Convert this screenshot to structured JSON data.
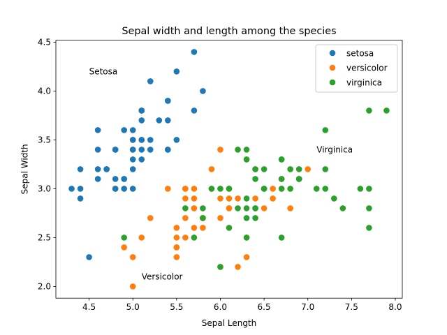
{
  "chart_data": {
    "type": "scatter",
    "title": "Sepal width and length among the species",
    "xlabel": "Sepal Length",
    "ylabel": "Sepal Width",
    "xlim": [
      4.12,
      8.08
    ],
    "ylim": [
      1.88,
      4.52
    ],
    "xticks": [
      4.5,
      5.0,
      5.5,
      6.0,
      6.5,
      7.0,
      7.5,
      8.0
    ],
    "yticks": [
      2.0,
      2.5,
      3.0,
      3.5,
      4.0,
      4.5
    ],
    "grid": false,
    "legend_position": "top-right",
    "series": [
      {
        "name": "setosa",
        "color": "#1f77b4",
        "points": [
          [
            5.1,
            3.5
          ],
          [
            4.9,
            3.0
          ],
          [
            4.7,
            3.2
          ],
          [
            4.6,
            3.1
          ],
          [
            5.0,
            3.6
          ],
          [
            5.4,
            3.9
          ],
          [
            4.6,
            3.4
          ],
          [
            5.0,
            3.4
          ],
          [
            4.4,
            2.9
          ],
          [
            4.9,
            3.1
          ],
          [
            5.4,
            3.7
          ],
          [
            4.8,
            3.4
          ],
          [
            4.8,
            3.0
          ],
          [
            4.3,
            3.0
          ],
          [
            5.8,
            4.0
          ],
          [
            5.7,
            4.4
          ],
          [
            5.4,
            3.9
          ],
          [
            5.1,
            3.5
          ],
          [
            5.7,
            3.8
          ],
          [
            5.1,
            3.8
          ],
          [
            5.4,
            3.4
          ],
          [
            5.1,
            3.7
          ],
          [
            4.6,
            3.6
          ],
          [
            5.1,
            3.3
          ],
          [
            4.8,
            3.4
          ],
          [
            5.0,
            3.0
          ],
          [
            5.0,
            3.4
          ],
          [
            5.2,
            3.5
          ],
          [
            5.2,
            3.4
          ],
          [
            4.7,
            3.2
          ],
          [
            4.8,
            3.1
          ],
          [
            5.4,
            3.4
          ],
          [
            5.2,
            4.1
          ],
          [
            5.5,
            4.2
          ],
          [
            4.9,
            3.1
          ],
          [
            5.0,
            3.2
          ],
          [
            5.5,
            3.5
          ],
          [
            4.9,
            3.6
          ],
          [
            4.4,
            3.0
          ],
          [
            5.1,
            3.4
          ],
          [
            5.0,
            3.5
          ],
          [
            4.5,
            2.3
          ],
          [
            4.4,
            3.2
          ],
          [
            5.0,
            3.5
          ],
          [
            5.1,
            3.8
          ],
          [
            4.8,
            3.0
          ],
          [
            5.1,
            3.8
          ],
          [
            4.6,
            3.2
          ],
          [
            5.3,
            3.7
          ],
          [
            5.0,
            3.3
          ]
        ]
      },
      {
        "name": "versicolor",
        "color": "#ff7f0e",
        "points": [
          [
            7.0,
            3.2
          ],
          [
            6.4,
            3.2
          ],
          [
            6.9,
            3.1
          ],
          [
            5.5,
            2.3
          ],
          [
            6.5,
            2.8
          ],
          [
            5.7,
            2.8
          ],
          [
            6.3,
            3.3
          ],
          [
            4.9,
            2.4
          ],
          [
            6.6,
            2.9
          ],
          [
            5.2,
            2.7
          ],
          [
            5.0,
            2.0
          ],
          [
            5.9,
            3.0
          ],
          [
            6.0,
            2.2
          ],
          [
            6.1,
            2.9
          ],
          [
            5.6,
            2.9
          ],
          [
            6.7,
            3.1
          ],
          [
            5.6,
            3.0
          ],
          [
            5.8,
            2.7
          ],
          [
            6.2,
            2.2
          ],
          [
            5.6,
            2.5
          ],
          [
            5.9,
            3.2
          ],
          [
            6.1,
            2.8
          ],
          [
            6.3,
            2.5
          ],
          [
            6.1,
            2.8
          ],
          [
            6.4,
            2.9
          ],
          [
            6.6,
            3.0
          ],
          [
            6.8,
            2.8
          ],
          [
            6.7,
            3.0
          ],
          [
            6.0,
            2.9
          ],
          [
            5.7,
            2.6
          ],
          [
            5.5,
            2.4
          ],
          [
            5.5,
            2.4
          ],
          [
            5.8,
            2.7
          ],
          [
            6.0,
            2.7
          ],
          [
            5.4,
            3.0
          ],
          [
            6.0,
            3.4
          ],
          [
            6.7,
            3.1
          ],
          [
            6.3,
            2.3
          ],
          [
            5.6,
            3.0
          ],
          [
            5.5,
            2.5
          ],
          [
            5.5,
            2.6
          ],
          [
            6.1,
            3.0
          ],
          [
            5.8,
            2.6
          ],
          [
            5.0,
            2.3
          ],
          [
            5.6,
            2.7
          ],
          [
            5.7,
            3.0
          ],
          [
            5.7,
            2.9
          ],
          [
            6.2,
            2.9
          ],
          [
            5.1,
            2.5
          ],
          [
            5.7,
            2.8
          ]
        ]
      },
      {
        "name": "virginica",
        "color": "#2ca02c",
        "points": [
          [
            6.3,
            3.3
          ],
          [
            5.8,
            2.7
          ],
          [
            7.1,
            3.0
          ],
          [
            6.3,
            2.9
          ],
          [
            6.5,
            3.0
          ],
          [
            7.6,
            3.0
          ],
          [
            4.9,
            2.5
          ],
          [
            7.3,
            2.9
          ],
          [
            6.7,
            2.5
          ],
          [
            7.2,
            3.6
          ],
          [
            6.5,
            3.2
          ],
          [
            6.4,
            2.7
          ],
          [
            6.8,
            3.0
          ],
          [
            5.7,
            2.5
          ],
          [
            5.8,
            2.8
          ],
          [
            6.4,
            3.2
          ],
          [
            6.5,
            3.0
          ],
          [
            7.7,
            3.8
          ],
          [
            7.7,
            2.6
          ],
          [
            6.0,
            2.2
          ],
          [
            6.9,
            3.2
          ],
          [
            5.6,
            2.8
          ],
          [
            7.7,
            2.8
          ],
          [
            6.3,
            2.7
          ],
          [
            6.7,
            3.3
          ],
          [
            7.2,
            3.2
          ],
          [
            6.2,
            2.8
          ],
          [
            6.1,
            3.0
          ],
          [
            6.4,
            2.8
          ],
          [
            7.2,
            3.0
          ],
          [
            7.4,
            2.8
          ],
          [
            7.9,
            3.8
          ],
          [
            6.4,
            2.8
          ],
          [
            6.3,
            2.8
          ],
          [
            6.1,
            2.6
          ],
          [
            7.7,
            3.0
          ],
          [
            6.3,
            3.4
          ],
          [
            6.4,
            3.1
          ],
          [
            6.0,
            3.0
          ],
          [
            6.9,
            3.1
          ],
          [
            6.7,
            3.1
          ],
          [
            6.9,
            3.1
          ],
          [
            5.8,
            2.7
          ],
          [
            6.8,
            3.2
          ],
          [
            6.7,
            3.3
          ],
          [
            6.7,
            3.0
          ],
          [
            6.3,
            2.5
          ],
          [
            6.5,
            3.0
          ],
          [
            6.2,
            3.4
          ],
          [
            5.9,
            3.0
          ]
        ]
      }
    ],
    "annotations": [
      {
        "text": "Setosa",
        "x": 4.5,
        "y": 4.2
      },
      {
        "text": "Virginica",
        "x": 7.1,
        "y": 3.4
      },
      {
        "text": "Versicolor",
        "x": 5.1,
        "y": 2.1
      }
    ]
  }
}
